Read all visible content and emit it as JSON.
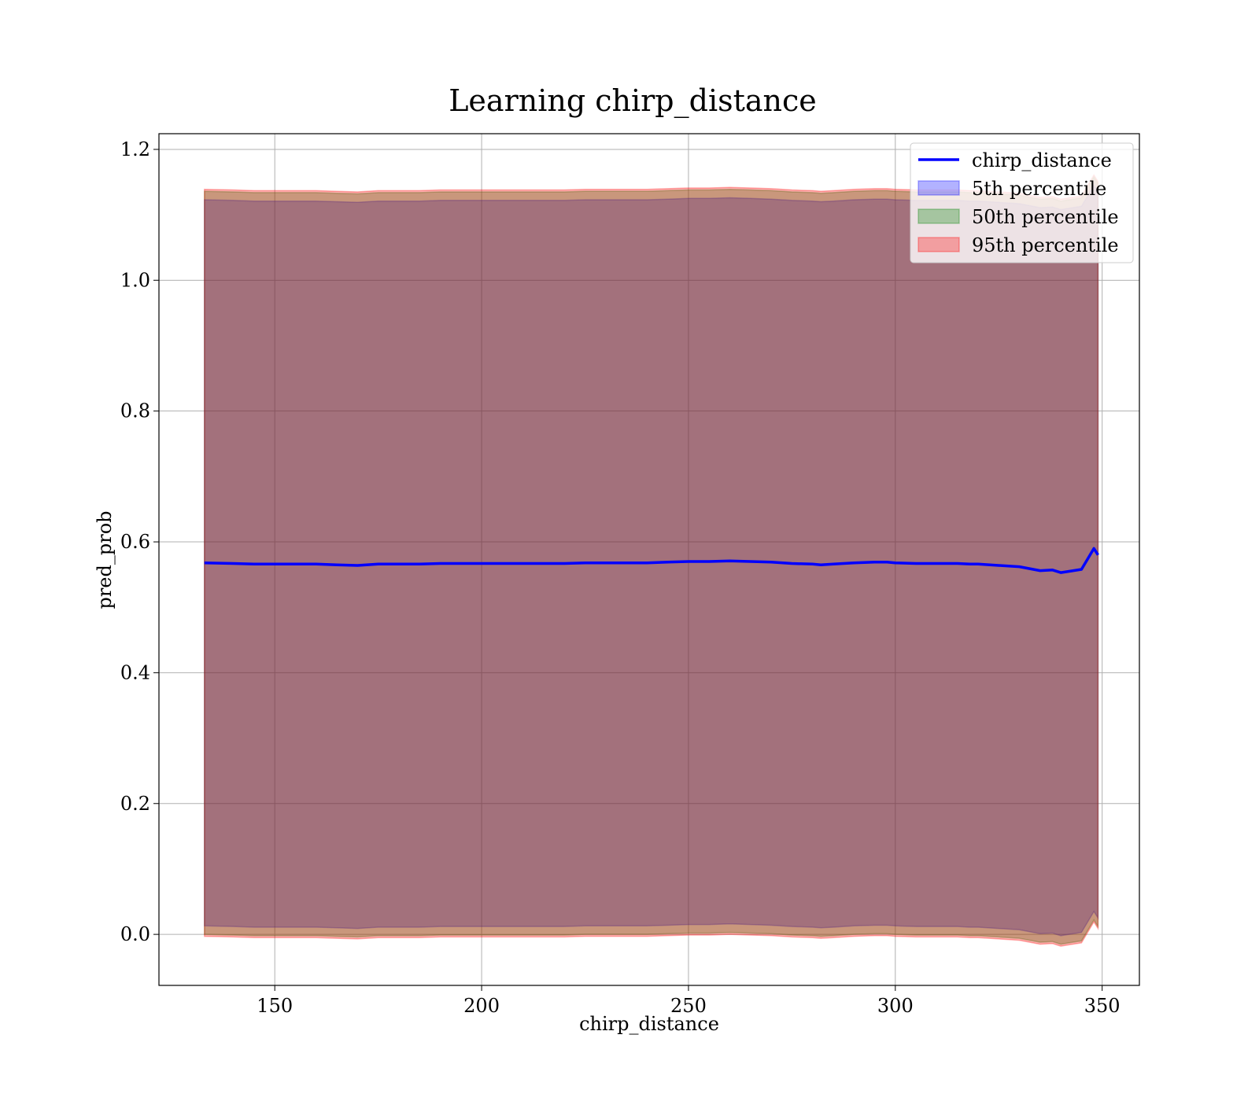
{
  "chart_data": {
    "type": "line",
    "title": "Learning chirp_distance",
    "xlabel": "chirp_distance",
    "ylabel": "pred_prob",
    "xlim": [
      122,
      359
    ],
    "ylim": [
      -0.078,
      1.224
    ],
    "xticks": [
      150,
      200,
      250,
      300,
      350
    ],
    "yticks": [
      0.0,
      0.2,
      0.4,
      0.6,
      0.8,
      1.0,
      1.2
    ],
    "xtick_labels": [
      "150",
      "200",
      "250",
      "300",
      "350"
    ],
    "ytick_labels": [
      "0.0",
      "0.2",
      "0.4",
      "0.6",
      "0.8",
      "1.0",
      "1.2"
    ],
    "grid": true,
    "legend_position": "top-right",
    "x": [
      133,
      140,
      145,
      150,
      155,
      160,
      165,
      170,
      175,
      180,
      185,
      190,
      195,
      200,
      205,
      210,
      215,
      220,
      225,
      230,
      235,
      240,
      245,
      250,
      255,
      260,
      265,
      270,
      275,
      280,
      282,
      285,
      290,
      295,
      298,
      300,
      305,
      310,
      315,
      318,
      320,
      325,
      330,
      335,
      338,
      340,
      342,
      345,
      348,
      349
    ],
    "series": [
      {
        "name": "chirp_distance",
        "kind": "line",
        "color": "#0000ff",
        "values": [
          0.568,
          0.567,
          0.566,
          0.566,
          0.566,
          0.566,
          0.565,
          0.564,
          0.566,
          0.566,
          0.566,
          0.567,
          0.567,
          0.567,
          0.567,
          0.567,
          0.567,
          0.567,
          0.568,
          0.568,
          0.568,
          0.568,
          0.569,
          0.57,
          0.57,
          0.571,
          0.57,
          0.569,
          0.567,
          0.566,
          0.565,
          0.566,
          0.568,
          0.569,
          0.569,
          0.568,
          0.567,
          0.567,
          0.567,
          0.566,
          0.566,
          0.564,
          0.562,
          0.556,
          0.557,
          0.553,
          0.555,
          0.558,
          0.59,
          0.58
        ]
      },
      {
        "name": "5th percentile",
        "kind": "band",
        "color": "#0000ff",
        "lower": [
          0.013,
          0.012,
          0.011,
          0.011,
          0.011,
          0.011,
          0.01,
          0.009,
          0.011,
          0.011,
          0.011,
          0.012,
          0.012,
          0.012,
          0.012,
          0.012,
          0.012,
          0.012,
          0.013,
          0.013,
          0.013,
          0.013,
          0.014,
          0.015,
          0.015,
          0.016,
          0.015,
          0.014,
          0.012,
          0.011,
          0.01,
          0.011,
          0.013,
          0.014,
          0.014,
          0.013,
          0.012,
          0.012,
          0.012,
          0.011,
          0.011,
          0.009,
          0.007,
          0.001,
          0.002,
          -0.002,
          0.0,
          0.003,
          0.035,
          0.025
        ],
        "upper": [
          1.123,
          1.122,
          1.121,
          1.121,
          1.121,
          1.121,
          1.12,
          1.119,
          1.121,
          1.121,
          1.121,
          1.122,
          1.122,
          1.122,
          1.122,
          1.122,
          1.122,
          1.122,
          1.123,
          1.123,
          1.123,
          1.123,
          1.124,
          1.125,
          1.125,
          1.126,
          1.125,
          1.124,
          1.122,
          1.121,
          1.12,
          1.121,
          1.123,
          1.124,
          1.124,
          1.123,
          1.122,
          1.122,
          1.122,
          1.121,
          1.121,
          1.119,
          1.117,
          1.111,
          1.112,
          1.108,
          1.11,
          1.113,
          1.145,
          1.135
        ]
      },
      {
        "name": "50th percentile",
        "kind": "band",
        "color": "#008000",
        "lower": [
          0.0,
          -0.001,
          -0.002,
          -0.002,
          -0.002,
          -0.002,
          -0.003,
          -0.004,
          -0.002,
          -0.002,
          -0.002,
          -0.001,
          -0.001,
          -0.001,
          -0.001,
          -0.001,
          -0.001,
          -0.001,
          0.0,
          0.0,
          0.0,
          0.0,
          0.001,
          0.002,
          0.002,
          0.003,
          0.002,
          0.001,
          -0.001,
          -0.002,
          -0.003,
          -0.002,
          0.0,
          0.001,
          0.001,
          0.0,
          -0.001,
          -0.001,
          -0.001,
          -0.002,
          -0.002,
          -0.004,
          -0.006,
          -0.012,
          -0.011,
          -0.015,
          -0.013,
          -0.01,
          0.022,
          0.012
        ],
        "upper": [
          1.136,
          1.135,
          1.134,
          1.134,
          1.134,
          1.134,
          1.133,
          1.132,
          1.134,
          1.134,
          1.134,
          1.135,
          1.135,
          1.135,
          1.135,
          1.135,
          1.135,
          1.135,
          1.136,
          1.136,
          1.136,
          1.136,
          1.137,
          1.138,
          1.138,
          1.139,
          1.138,
          1.137,
          1.135,
          1.134,
          1.133,
          1.134,
          1.136,
          1.137,
          1.137,
          1.136,
          1.135,
          1.135,
          1.135,
          1.134,
          1.134,
          1.132,
          1.13,
          1.124,
          1.125,
          1.121,
          1.123,
          1.126,
          1.158,
          1.148
        ]
      },
      {
        "name": "95th percentile",
        "kind": "band",
        "color": "#ff0000",
        "lower": [
          -0.003,
          -0.004,
          -0.005,
          -0.005,
          -0.005,
          -0.005,
          -0.006,
          -0.007,
          -0.005,
          -0.005,
          -0.005,
          -0.004,
          -0.004,
          -0.004,
          -0.004,
          -0.004,
          -0.004,
          -0.004,
          -0.003,
          -0.003,
          -0.003,
          -0.003,
          -0.002,
          -0.001,
          -0.001,
          0.0,
          -0.001,
          -0.002,
          -0.004,
          -0.005,
          -0.006,
          -0.005,
          -0.003,
          -0.002,
          -0.002,
          -0.003,
          -0.004,
          -0.004,
          -0.004,
          -0.005,
          -0.005,
          -0.007,
          -0.009,
          -0.015,
          -0.014,
          -0.018,
          -0.016,
          -0.013,
          0.019,
          0.009
        ],
        "upper": [
          1.139,
          1.138,
          1.137,
          1.137,
          1.137,
          1.137,
          1.136,
          1.135,
          1.137,
          1.137,
          1.137,
          1.138,
          1.138,
          1.138,
          1.138,
          1.138,
          1.138,
          1.138,
          1.139,
          1.139,
          1.139,
          1.139,
          1.14,
          1.141,
          1.141,
          1.142,
          1.141,
          1.14,
          1.138,
          1.137,
          1.136,
          1.137,
          1.139,
          1.14,
          1.14,
          1.139,
          1.138,
          1.138,
          1.138,
          1.137,
          1.137,
          1.135,
          1.133,
          1.127,
          1.128,
          1.124,
          1.126,
          1.129,
          1.161,
          1.151
        ]
      }
    ]
  }
}
